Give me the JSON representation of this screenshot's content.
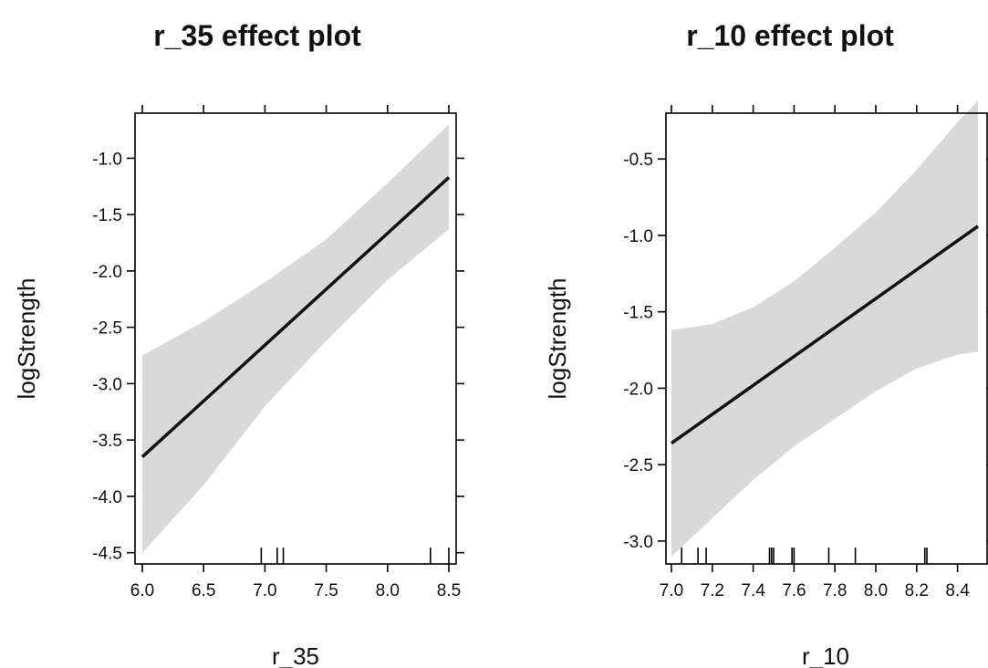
{
  "chart_data": [
    {
      "type": "line",
      "title": "r_35 effect plot",
      "xlabel": "r_35",
      "ylabel": "logStrength",
      "xlim": [
        6.0,
        8.5
      ],
      "ylim": [
        -4.6,
        -0.6
      ],
      "x_ticks": [
        6.0,
        6.5,
        7.0,
        7.5,
        8.0,
        8.5
      ],
      "x_tick_labels": [
        "6.0",
        "6.5",
        "7.0",
        "7.5",
        "8.0",
        "8.5"
      ],
      "y_ticks": [
        -4.5,
        -4.0,
        -3.5,
        -3.0,
        -2.5,
        -2.0,
        -1.5,
        -1.0
      ],
      "y_tick_labels": [
        "-4.5",
        "-4.0",
        "-3.5",
        "-3.0",
        "-2.5",
        "-2.0",
        "-1.5",
        "-1.0"
      ],
      "fit": {
        "x": [
          6.0,
          8.5
        ],
        "y": [
          -3.65,
          -1.17
        ]
      },
      "band": {
        "x": [
          6.0,
          6.5,
          7.0,
          7.5,
          8.0,
          8.5
        ],
        "lower": [
          -4.5,
          -3.9,
          -3.2,
          -2.62,
          -2.08,
          -1.63
        ],
        "upper": [
          -2.75,
          -2.45,
          -2.1,
          -1.72,
          -1.22,
          -0.7
        ]
      },
      "rug": [
        6.97,
        7.1,
        7.15,
        8.35,
        8.5
      ]
    },
    {
      "type": "line",
      "title": "r_10 effect plot",
      "xlabel": "r_10",
      "ylabel": "logStrength",
      "xlim": [
        7.0,
        8.5
      ],
      "ylim": [
        -3.15,
        -0.2
      ],
      "x_ticks": [
        7.0,
        7.2,
        7.4,
        7.6,
        7.8,
        8.0,
        8.2,
        8.4
      ],
      "x_tick_labels": [
        "7.0",
        "7.2",
        "7.4",
        "7.6",
        "7.8",
        "8.0",
        "8.2",
        "8.4"
      ],
      "y_ticks": [
        -3.0,
        -2.5,
        -2.0,
        -1.5,
        -1.0,
        -0.5
      ],
      "y_tick_labels": [
        "-3.0",
        "-2.5",
        "-2.0",
        "-1.5",
        "-1.0",
        "-0.5"
      ],
      "fit": {
        "x": [
          7.0,
          8.5
        ],
        "y": [
          -2.36,
          -0.94
        ]
      },
      "band": {
        "x": [
          7.0,
          7.2,
          7.4,
          7.6,
          7.8,
          8.0,
          8.2,
          8.4,
          8.5
        ],
        "lower": [
          -3.1,
          -2.85,
          -2.6,
          -2.38,
          -2.2,
          -2.02,
          -1.87,
          -1.78,
          -1.76
        ],
        "upper": [
          -1.62,
          -1.58,
          -1.47,
          -1.3,
          -1.08,
          -0.85,
          -0.57,
          -0.26,
          -0.12
        ]
      },
      "rug": [
        7.05,
        7.13,
        7.17,
        7.48,
        7.49,
        7.5,
        7.59,
        7.6,
        7.77,
        7.9,
        8.24,
        8.25
      ]
    }
  ]
}
